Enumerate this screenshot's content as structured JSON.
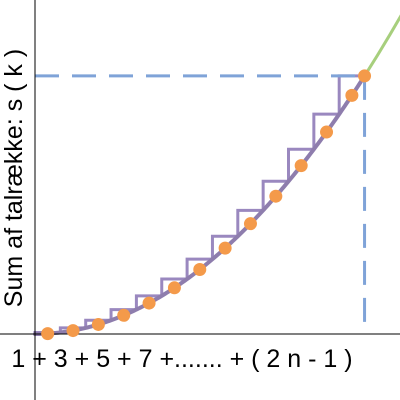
{
  "chart_data": {
    "type": "line",
    "ylabel": "Sum af talrække: s ( k )",
    "xlabel": "1 + 3 + 5 + 7 +....... + ( 2 n - 1 )",
    "xlim": [
      0,
      14.5
    ],
    "ylim": [
      0,
      210
    ],
    "grid": false,
    "n": 13,
    "n_squared": 169,
    "series": [
      {
        "kind": "points",
        "x": [
          0.5,
          1.5,
          2.5,
          3.5,
          4.5,
          5.5,
          6.5,
          7.5,
          8.5,
          9.5,
          10.5,
          11.5,
          12.5
        ],
        "y": [
          0.25,
          2.25,
          6.25,
          12.25,
          20.25,
          30.25,
          42.25,
          56.25,
          72.25,
          90.25,
          110.25,
          132.25,
          156.25
        ]
      },
      {
        "kind": "curve",
        "x": [
          0,
          1,
          2,
          3,
          4,
          5,
          6,
          7,
          8,
          9,
          10,
          11,
          12,
          13
        ],
        "y": [
          0,
          1,
          4,
          9,
          16,
          25,
          36,
          49,
          64,
          81,
          100,
          121,
          144,
          169
        ]
      },
      {
        "kind": "continuation",
        "x": [
          13,
          13.5,
          14,
          14.5
        ],
        "y": [
          169,
          182.25,
          196,
          210.25
        ]
      }
    ],
    "colors": {
      "points": "#f49a4a",
      "curve": "#8e7dad",
      "steps": "#9a88bf",
      "continuation": "#a7cf7d",
      "guide": "#7fa3d8",
      "axis": "#000000"
    }
  }
}
